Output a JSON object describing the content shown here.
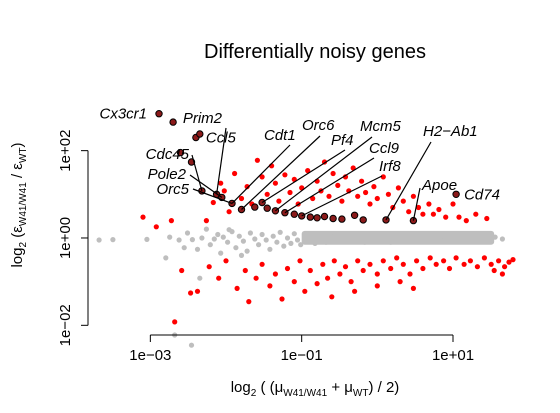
{
  "chart_data": {
    "type": "scatter",
    "title": "Differentially noisy genes",
    "xlabel": {
      "prefix": "log",
      "base": "2",
      "open": " ( (μ",
      "sub1": "W41/W41",
      "mid": " + μ",
      "sub2": "WT",
      "close": ") / 2)"
    },
    "ylabel": {
      "prefix": "log",
      "base": "2",
      "open": " (ε",
      "sub1": "W41/W41",
      "mid": " / ε",
      "sub2": "WT",
      "close": ")"
    },
    "x_scale": "log10",
    "y_scale": "log10",
    "xlim": [
      0.00015,
      150
    ],
    "ylim": [
      0.006,
      6000
    ],
    "x_ticks": [
      {
        "value": 0.001,
        "label": "1e−03"
      },
      {
        "value": 0.1,
        "label": "1e−01"
      },
      {
        "value": 10,
        "label": "1e+01"
      }
    ],
    "y_ticks": [
      {
        "value": 0.01,
        "label": "1e−02"
      },
      {
        "value": 1,
        "label": "1e+00"
      },
      {
        "value": 100,
        "label": "1e+02"
      }
    ],
    "colors": {
      "non_significant": "#bebebe",
      "significant": "#ff0000",
      "highlighted_fill": "#8b1a1a",
      "highlighted_stroke": "#000000",
      "axis": "#000000"
    },
    "series": [
      {
        "role": "non-significant",
        "points": [
          [
            0.00021,
            0.9
          ],
          [
            0.00032,
            0.92
          ],
          [
            0.0009,
            0.93
          ],
          [
            0.0016,
            0.35
          ],
          [
            0.0018,
            1.05
          ],
          [
            0.0024,
            0.9
          ],
          [
            0.0028,
            0.6
          ],
          [
            0.0031,
            1.3
          ],
          [
            0.0036,
            0.92
          ],
          [
            0.0042,
            0.55
          ],
          [
            0.0048,
            1.0
          ],
          [
            0.0055,
            1.6
          ],
          [
            0.0062,
            0.7
          ],
          [
            0.007,
            0.95
          ],
          [
            0.0078,
            1.2
          ],
          [
            0.0085,
            0.45
          ],
          [
            0.0092,
            1.05
          ],
          [
            0.0105,
            0.8
          ],
          [
            0.012,
            1.4
          ],
          [
            0.0135,
            0.6
          ],
          [
            0.015,
            1.1
          ],
          [
            0.017,
            0.85
          ],
          [
            0.019,
            0.5
          ],
          [
            0.021,
            1.3
          ],
          [
            0.024,
            0.95
          ],
          [
            0.027,
            0.7
          ],
          [
            0.03,
            1.2
          ],
          [
            0.034,
            0.9
          ],
          [
            0.038,
            0.55
          ],
          [
            0.042,
            1.1
          ],
          [
            0.047,
            0.8
          ],
          [
            0.052,
            1.35
          ],
          [
            0.058,
            0.65
          ],
          [
            0.065,
            1.0
          ],
          [
            0.072,
            0.75
          ],
          [
            0.08,
            1.25
          ],
          [
            0.088,
            0.9
          ],
          [
            0.097,
            0.7
          ],
          [
            0.11,
            1.15
          ],
          [
            0.12,
            0.85
          ],
          [
            0.135,
            1.0
          ],
          [
            0.15,
            0.75
          ],
          [
            0.17,
            1.2
          ],
          [
            0.19,
            0.9
          ],
          [
            0.21,
            0.8
          ],
          [
            0.24,
            1.1
          ],
          [
            0.27,
            0.95
          ],
          [
            0.3,
            0.85
          ],
          [
            0.34,
            1.05
          ],
          [
            0.38,
            0.9
          ],
          [
            0.43,
            1.0
          ],
          [
            0.48,
            0.85
          ],
          [
            0.54,
            1.1
          ],
          [
            0.6,
            0.95
          ],
          [
            0.68,
            0.8
          ],
          [
            0.76,
            1.05
          ],
          [
            0.85,
            0.9
          ],
          [
            0.95,
            1.0
          ],
          [
            1.07,
            0.85
          ],
          [
            1.2,
            1.1
          ],
          [
            1.35,
            0.95
          ],
          [
            1.5,
            0.8
          ],
          [
            1.7,
            1.0
          ],
          [
            1.9,
            0.9
          ],
          [
            2.15,
            1.1
          ],
          [
            2.4,
            0.85
          ],
          [
            2.7,
            1.0
          ],
          [
            3.0,
            0.9
          ],
          [
            3.4,
            1.05
          ],
          [
            3.8,
            0.85
          ],
          [
            4.3,
            1.0
          ],
          [
            4.8,
            0.9
          ],
          [
            5.4,
            1.1
          ],
          [
            6.1,
            0.95
          ],
          [
            6.8,
            0.85
          ],
          [
            7.7,
            1.05
          ],
          [
            8.6,
            0.9
          ],
          [
            9.7,
            1.0
          ],
          [
            11,
            0.85
          ],
          [
            12.3,
            0.95
          ],
          [
            14,
            1.05
          ],
          [
            16,
            0.9
          ],
          [
            18,
            1.1
          ],
          [
            21,
            0.95
          ],
          [
            24,
            0.85
          ],
          [
            27,
            1.0
          ],
          [
            30,
            0.9
          ],
          [
            36,
            1.05
          ],
          [
            45,
            0.95
          ],
          [
            0.0035,
            0.0035
          ],
          [
            0.0021,
            0.006
          ],
          [
            0.0045,
            0.12
          ],
          [
            0.011,
            1.55
          ],
          [
            0.016,
            0.4
          ]
        ]
      },
      {
        "role": "significant",
        "points": [
          [
            0.0008,
            3.0
          ],
          [
            0.0012,
            1.8
          ],
          [
            0.0019,
            2.5
          ],
          [
            0.0026,
            0.18
          ],
          [
            0.0034,
            0.055
          ],
          [
            0.0042,
            0.06
          ],
          [
            0.0021,
            0.012
          ],
          [
            0.0055,
            2.5
          ],
          [
            0.0068,
            6.5
          ],
          [
            0.0085,
            18
          ],
          [
            0.0095,
            12
          ],
          [
            0.011,
            4.0
          ],
          [
            0.013,
            30
          ],
          [
            0.016,
            8.0
          ],
          [
            0.019,
            15
          ],
          [
            0.022,
            6.0
          ],
          [
            0.026,
            60
          ],
          [
            0.03,
            25
          ],
          [
            0.035,
            10
          ],
          [
            0.04,
            45
          ],
          [
            0.045,
            18
          ],
          [
            0.05,
            7.0
          ],
          [
            0.06,
            28
          ],
          [
            0.07,
            11
          ],
          [
            0.08,
            22
          ],
          [
            0.09,
            6.0
          ],
          [
            0.1,
            14
          ],
          [
            0.12,
            35
          ],
          [
            0.14,
            8.0
          ],
          [
            0.16,
            20
          ],
          [
            0.18,
            12
          ],
          [
            0.2,
            55
          ],
          [
            0.23,
            9.0
          ],
          [
            0.26,
            30
          ],
          [
            0.3,
            16
          ],
          [
            0.34,
            7.0
          ],
          [
            0.38,
            25
          ],
          [
            0.42,
            12
          ],
          [
            0.48,
            40
          ],
          [
            0.55,
            9.0
          ],
          [
            0.62,
            20
          ],
          [
            0.7,
            11
          ],
          [
            0.8,
            6.0
          ],
          [
            0.9,
            15
          ],
          [
            1.0,
            8.0
          ],
          [
            1.2,
            25
          ],
          [
            1.4,
            10
          ],
          [
            1.6,
            5.0
          ],
          [
            1.9,
            14
          ],
          [
            2.2,
            7.0
          ],
          [
            2.6,
            4.0
          ],
          [
            3.0,
            9.0
          ],
          [
            3.5,
            5.0
          ],
          [
            4.0,
            3.5
          ],
          [
            4.8,
            6.0
          ],
          [
            5.5,
            3.5
          ],
          [
            6.5,
            4.5
          ],
          [
            8.0,
            3.0
          ],
          [
            10,
            6.0
          ],
          [
            12,
            3.0
          ],
          [
            15,
            2.5
          ],
          [
            20,
            3.5
          ],
          [
            28,
            2.8
          ],
          [
            0.006,
            0.22
          ],
          [
            0.008,
            0.12
          ],
          [
            0.01,
            0.3
          ],
          [
            0.014,
            0.07
          ],
          [
            0.018,
            0.18
          ],
          [
            0.02,
            0.035
          ],
          [
            0.025,
            0.12
          ],
          [
            0.03,
            0.25
          ],
          [
            0.038,
            0.08
          ],
          [
            0.045,
            0.15
          ],
          [
            0.055,
            0.04
          ],
          [
            0.065,
            0.2
          ],
          [
            0.08,
            0.1
          ],
          [
            0.095,
            0.3
          ],
          [
            0.11,
            0.06
          ],
          [
            0.13,
            0.18
          ],
          [
            0.16,
            0.09
          ],
          [
            0.19,
            0.25
          ],
          [
            0.22,
            0.12
          ],
          [
            0.27,
            0.3
          ],
          [
            0.32,
            0.15
          ],
          [
            0.38,
            0.22
          ],
          [
            0.45,
            0.1
          ],
          [
            0.55,
            0.3
          ],
          [
            0.65,
            0.18
          ],
          [
            0.8,
            0.25
          ],
          [
            1.0,
            0.15
          ],
          [
            1.2,
            0.3
          ],
          [
            1.5,
            0.2
          ],
          [
            1.8,
            0.35
          ],
          [
            2.2,
            0.25
          ],
          [
            2.7,
            0.15
          ],
          [
            3.3,
            0.3
          ],
          [
            4.0,
            0.2
          ],
          [
            5.0,
            0.35
          ],
          [
            6.0,
            0.25
          ],
          [
            7.5,
            0.3
          ],
          [
            9.0,
            0.2
          ],
          [
            11,
            0.35
          ],
          [
            14,
            0.25
          ],
          [
            17,
            0.3
          ],
          [
            21,
            0.22
          ],
          [
            26,
            0.35
          ],
          [
            32,
            0.25
          ],
          [
            40,
            0.3
          ],
          [
            48,
            0.22
          ],
          [
            55,
            0.28
          ],
          [
            62,
            0.32
          ],
          [
            35,
            0.18
          ],
          [
            45,
            0.15
          ],
          [
            0.5,
            0.06
          ],
          [
            1.0,
            0.08
          ],
          [
            2.0,
            0.1
          ],
          [
            3.0,
            0.07
          ],
          [
            0.25,
            0.045
          ]
        ]
      },
      {
        "role": "highlighted",
        "points": [
          [
            0.0013,
            700
          ],
          [
            0.002,
            450
          ],
          [
            0.004,
            200
          ],
          [
            0.0045,
            240
          ],
          [
            0.0025,
            90
          ],
          [
            0.0035,
            55
          ],
          [
            0.0048,
            12
          ],
          [
            0.0075,
            10
          ],
          [
            0.0088,
            8.5
          ],
          [
            0.012,
            6.2
          ],
          [
            0.016,
            4.5
          ],
          [
            0.024,
            5.1
          ],
          [
            0.03,
            6.5
          ],
          [
            0.035,
            4.8
          ],
          [
            0.045,
            4.2
          ],
          [
            0.06,
            3.8
          ],
          [
            0.08,
            3.5
          ],
          [
            0.1,
            3.2
          ],
          [
            0.13,
            3.0
          ],
          [
            0.16,
            2.9
          ],
          [
            0.2,
            3.1
          ],
          [
            0.26,
            2.8
          ],
          [
            0.34,
            2.7
          ],
          [
            0.5,
            3.3
          ],
          [
            0.65,
            2.6
          ],
          [
            1.3,
            2.6
          ],
          [
            3.0,
            2.5
          ],
          [
            11,
            10
          ]
        ]
      }
    ],
    "annotations": [
      {
        "label": "Cx3cr1",
        "point": [
          0.0013,
          700
        ]
      },
      {
        "label": "Ccl5",
        "point": [
          0.004,
          200
        ]
      },
      {
        "label": "Prim2",
        "point": [
          0.0075,
          10
        ]
      },
      {
        "label": "Cdt1",
        "point": [
          0.012,
          6.2
        ]
      },
      {
        "label": "Orc6",
        "point": [
          0.016,
          4.5
        ]
      },
      {
        "label": "Pf4",
        "point": [
          0.03,
          6.5
        ]
      },
      {
        "label": "Mcm5",
        "point": [
          0.045,
          4.2
        ]
      },
      {
        "label": "Ccl9",
        "point": [
          0.06,
          3.8
        ]
      },
      {
        "label": "Irf8",
        "point": [
          0.1,
          3.2
        ]
      },
      {
        "label": "H2−Ab1",
        "point": [
          1.3,
          2.6
        ]
      },
      {
        "label": "Cd74",
        "point": [
          11,
          10
        ]
      },
      {
        "label": "Apoe",
        "point": [
          3.0,
          2.5
        ]
      },
      {
        "label": "Cdc45",
        "point": [
          0.0048,
          12
        ]
      },
      {
        "label": "Pole2",
        "point": [
          0.0088,
          8.5
        ]
      },
      {
        "label": "Orc5",
        "point": [
          0.012,
          6.2
        ]
      }
    ]
  }
}
